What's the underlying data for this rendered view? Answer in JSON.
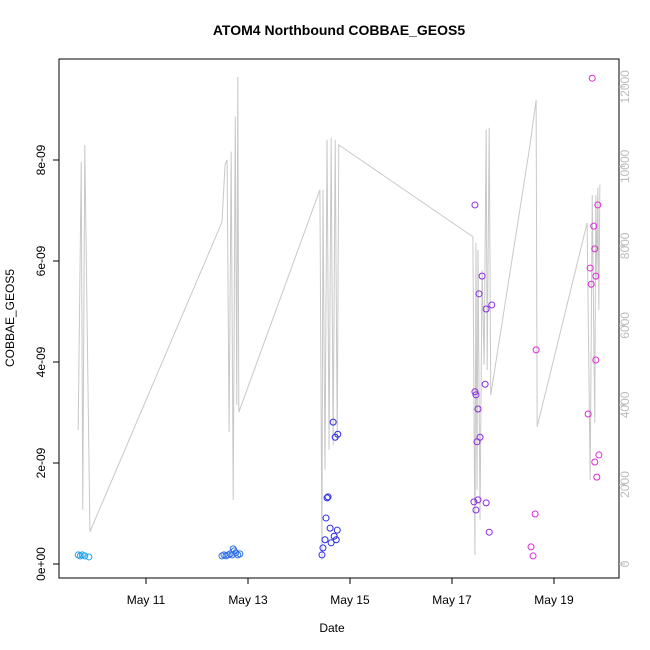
{
  "chart_data": {
    "type": "scatter-line",
    "title": "ATOM4 Northbound COBBAE_GEOS5",
    "xlabel": "Date",
    "ylabel": "COBBAE_GEOS5",
    "xlim": [
      9.294,
      20.275
    ],
    "ylim": [
      -2.77e-10,
      1e-08
    ],
    "y2lim": [
      -352,
      12700
    ],
    "xticks": [
      {
        "value": 11,
        "label": "May 11"
      },
      {
        "value": 13,
        "label": "May 13"
      },
      {
        "value": 15,
        "label": "May 15"
      },
      {
        "value": 17,
        "label": "May 17"
      },
      {
        "value": 19,
        "label": "May 19"
      }
    ],
    "yticks": [
      {
        "value": 0,
        "label": "0e+00"
      },
      {
        "value": 2e-09,
        "label": "2e-09"
      },
      {
        "value": 4e-09,
        "label": "4e-09"
      },
      {
        "value": 6e-09,
        "label": "6e-09"
      },
      {
        "value": 8e-09,
        "label": "8e-09"
      }
    ],
    "y2ticks": [
      0,
      2000,
      4000,
      6000,
      8000,
      10000,
      12000
    ],
    "series": [
      {
        "kind": "line",
        "axis": "y2",
        "color": "#c8c8c8",
        "x": [
          9.67,
          9.73,
          9.76,
          9.8,
          9.9,
          12.49,
          12.55,
          12.59,
          12.63,
          12.67,
          12.71,
          12.75,
          12.78,
          12.8,
          12.82,
          14.41,
          14.45,
          14.47,
          14.51,
          14.55,
          14.59,
          14.63,
          14.67,
          14.71,
          14.75,
          14.78,
          17.41,
          17.45,
          17.47,
          17.49,
          17.51,
          17.55,
          17.59,
          17.63,
          17.67,
          17.69,
          17.73,
          17.76,
          18.53,
          18.65,
          18.67,
          19.65,
          19.71,
          19.75,
          19.8,
          19.82,
          19.84,
          19.86,
          19.88,
          19.9
        ],
        "values": [
          3370,
          10110,
          1360,
          10540,
          810,
          8600,
          10040,
          10160,
          3320,
          10370,
          1610,
          11250,
          4000,
          12250,
          3820,
          9410,
          100,
          9410,
          2370,
          10670,
          2870,
          10720,
          2990,
          10670,
          3120,
          10540,
          8230,
          230,
          8080,
          1860,
          7900,
          1110,
          7400,
          5010,
          10920,
          4880,
          10970,
          4250,
          10540,
          11670,
          3450,
          8580,
          2110,
          9280,
          3550,
          9280,
          7150,
          9460,
          6390,
          9540
        ]
      },
      {
        "kind": "points",
        "color": "#1ca0ee",
        "x": [
          9.67,
          9.71,
          9.75,
          9.8,
          9.88
        ],
        "values": [
          1.8e-10,
          1.6e-10,
          1.8e-10,
          1.6e-10,
          1.4e-10
        ]
      },
      {
        "kind": "points",
        "color": "#2a6ee8",
        "x": [
          12.49,
          12.53,
          12.57,
          12.61,
          12.65,
          12.69,
          12.71,
          12.73,
          12.76,
          12.8,
          12.84
        ],
        "values": [
          1.6e-10,
          1.8e-10,
          1.6e-10,
          1.8e-10,
          2e-10,
          1.8e-10,
          3e-10,
          2.6e-10,
          2.2e-10,
          1.8e-10,
          2e-10
        ]
      },
      {
        "kind": "points",
        "color": "#2a2ae6",
        "x": [
          14.45,
          14.47,
          14.51,
          14.53,
          14.55,
          14.57,
          14.61,
          14.63,
          14.67,
          14.69,
          14.71,
          14.73,
          14.75,
          14.76
        ],
        "values": [
          1.8e-10,
          3.2e-10,
          4.8e-10,
          9.1e-10,
          1.31e-09,
          1.33e-09,
          7.1e-10,
          4.2e-10,
          2.81e-09,
          5.5e-10,
          2.51e-09,
          4.8e-10,
          6.7e-10,
          2.57e-09
        ]
      },
      {
        "kind": "points",
        "color": "#8a2ae0",
        "x": [
          17.43,
          17.45,
          17.45,
          17.47,
          17.47,
          17.49,
          17.51,
          17.51,
          17.53,
          17.55,
          17.59,
          17.65,
          17.67,
          17.67,
          17.73,
          17.78
        ],
        "values": [
          1.23e-09,
          7.11e-09,
          3.41e-09,
          1.07e-09,
          3.35e-09,
          2.42e-09,
          1.27e-09,
          3.07e-09,
          5.35e-09,
          2.51e-09,
          5.7e-09,
          3.56e-09,
          5.05e-09,
          1.21e-09,
          6.3e-10,
          5.13e-09
        ]
      },
      {
        "kind": "points",
        "color": "#dd2ad8",
        "x": [
          18.55,
          18.59,
          18.63,
          18.65,
          19.67,
          19.71,
          19.73,
          19.75,
          19.78,
          19.8,
          19.8,
          19.82,
          19.82,
          19.84,
          19.86,
          19.88
        ],
        "values": [
          3.4e-10,
          1.6e-10,
          9.9e-10,
          4.24e-09,
          2.97e-09,
          5.86e-09,
          5.54e-09,
          9.62e-09,
          6.69e-09,
          6.24e-09,
          2.02e-09,
          5.7e-09,
          4.04e-09,
          1.72e-09,
          7.11e-09,
          2.16e-09
        ]
      }
    ]
  }
}
